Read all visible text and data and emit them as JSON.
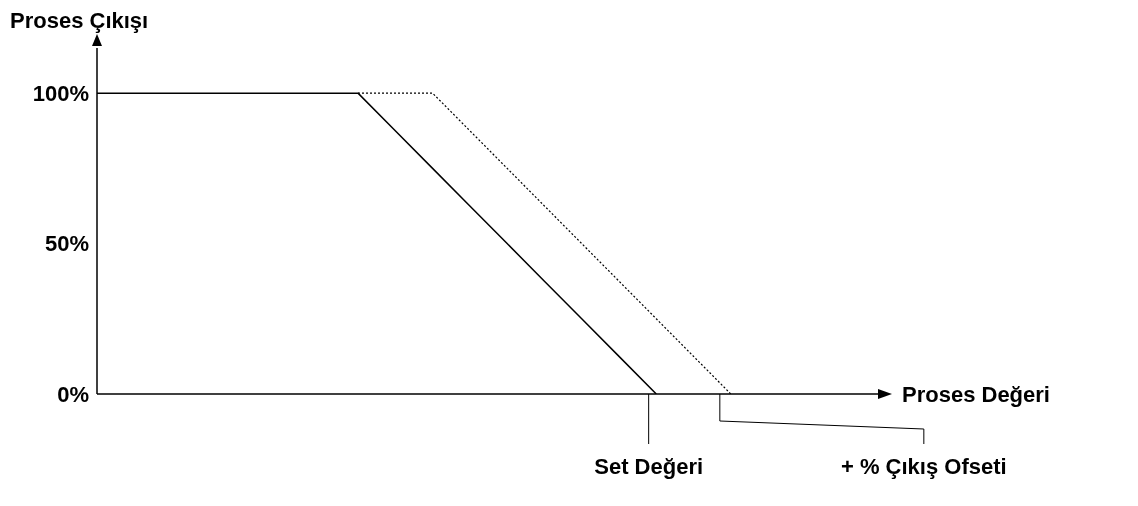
{
  "chart_data": {
    "type": "line",
    "xlabel": "Proses Değeri",
    "ylabel": "Proses Çıkışı",
    "categories": [
      null,
      null,
      null,
      null,
      null,
      null,
      null,
      null,
      null,
      null,
      null,
      null,
      null,
      null,
      null,
      null,
      null,
      null,
      null,
      null,
      null,
      null
    ],
    "series": [
      {
        "color": "#000000",
        "line_style": "solid",
        "values": [
          100,
          100,
          100,
          100,
          100,
          100,
          100,
          100,
          87.5,
          75,
          62.5,
          50,
          37.5,
          25,
          12.5,
          0,
          null,
          null,
          null,
          null,
          null,
          null
        ]
      },
      {
        "color": "#000000",
        "line_style": "dotted",
        "values": [
          null,
          null,
          null,
          null,
          null,
          null,
          null,
          100,
          100,
          100,
          87.5,
          75,
          62.5,
          50,
          37.5,
          25,
          12.5,
          0,
          null,
          null,
          null,
          null
        ]
      }
    ],
    "ylim": [
      0,
      115
    ],
    "yticks": [
      {
        "value": 0,
        "label": "0%"
      },
      {
        "value": 50,
        "label": "50%"
      },
      {
        "value": 100,
        "label": "100%"
      }
    ],
    "annotations": [
      "Set Değeri",
      "+ % Çıkış Ofseti"
    ],
    "grid": false,
    "legend": false,
    "marker": "none"
  }
}
